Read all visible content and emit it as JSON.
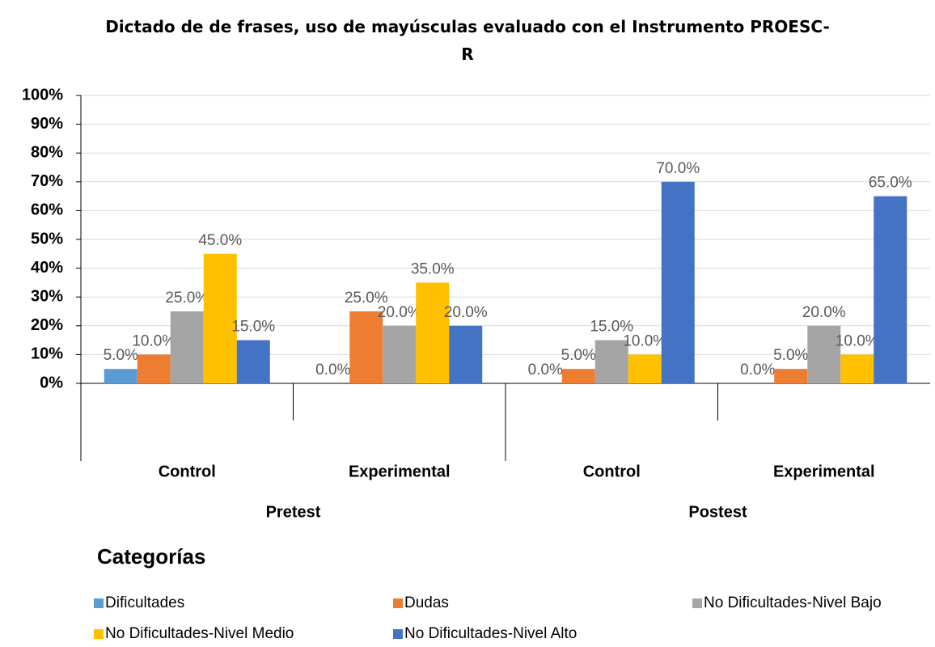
{
  "chart_data": {
    "type": "bar",
    "title": "Dictado de de frases, uso de mayúsculas evaluado con el Instrumento PROESC-R",
    "categories": [
      "Control",
      "Experimental",
      "Control",
      "Experimental"
    ],
    "groups": [
      "Pretest",
      "Postest"
    ],
    "legend_title": "Categorías",
    "ylim": [
      0,
      100
    ],
    "yticks": [
      {
        "value": 0,
        "label": "0%"
      },
      {
        "value": 10,
        "label": "10%"
      },
      {
        "value": 20,
        "label": "20%"
      },
      {
        "value": 30,
        "label": "30%"
      },
      {
        "value": 40,
        "label": "40%"
      },
      {
        "value": 50,
        "label": "50%"
      },
      {
        "value": 60,
        "label": "60%"
      },
      {
        "value": 70,
        "label": "70%"
      },
      {
        "value": 80,
        "label": "80%"
      },
      {
        "value": 90,
        "label": "90%"
      },
      {
        "value": 100,
        "label": "100%"
      }
    ],
    "grid": true,
    "series": [
      {
        "name": "Dificultades",
        "color": "#5b9bd5",
        "values": [
          5,
          0,
          0,
          0
        ],
        "value_labels": [
          "5.0%",
          "0.0%",
          "0.0%",
          "0.0%"
        ]
      },
      {
        "name": "Dudas",
        "color": "#ed7d31",
        "values": [
          10,
          25,
          5,
          5
        ],
        "value_labels": [
          "10.0%",
          "25.0%",
          "5.0%",
          "5.0%"
        ]
      },
      {
        "name": "No Dificultades-Nivel Bajo",
        "color": "#a5a5a5",
        "values": [
          25,
          20,
          15,
          20
        ],
        "value_labels": [
          "25.0%",
          "20.0%",
          "15.0%",
          "20.0%"
        ]
      },
      {
        "name": "No Dificultades-Nivel Medio",
        "color": "#ffc000",
        "values": [
          45,
          35,
          10,
          10
        ],
        "value_labels": [
          "45.0%",
          "35.0%",
          "10.0%",
          "10.0%"
        ]
      },
      {
        "name": "No Dificultades-Nivel Alto",
        "color": "#4472c4",
        "values": [
          15,
          20,
          70,
          65
        ],
        "value_labels": [
          "15.0%",
          "20.0%",
          "70.0%",
          "65.0%"
        ]
      }
    ]
  }
}
